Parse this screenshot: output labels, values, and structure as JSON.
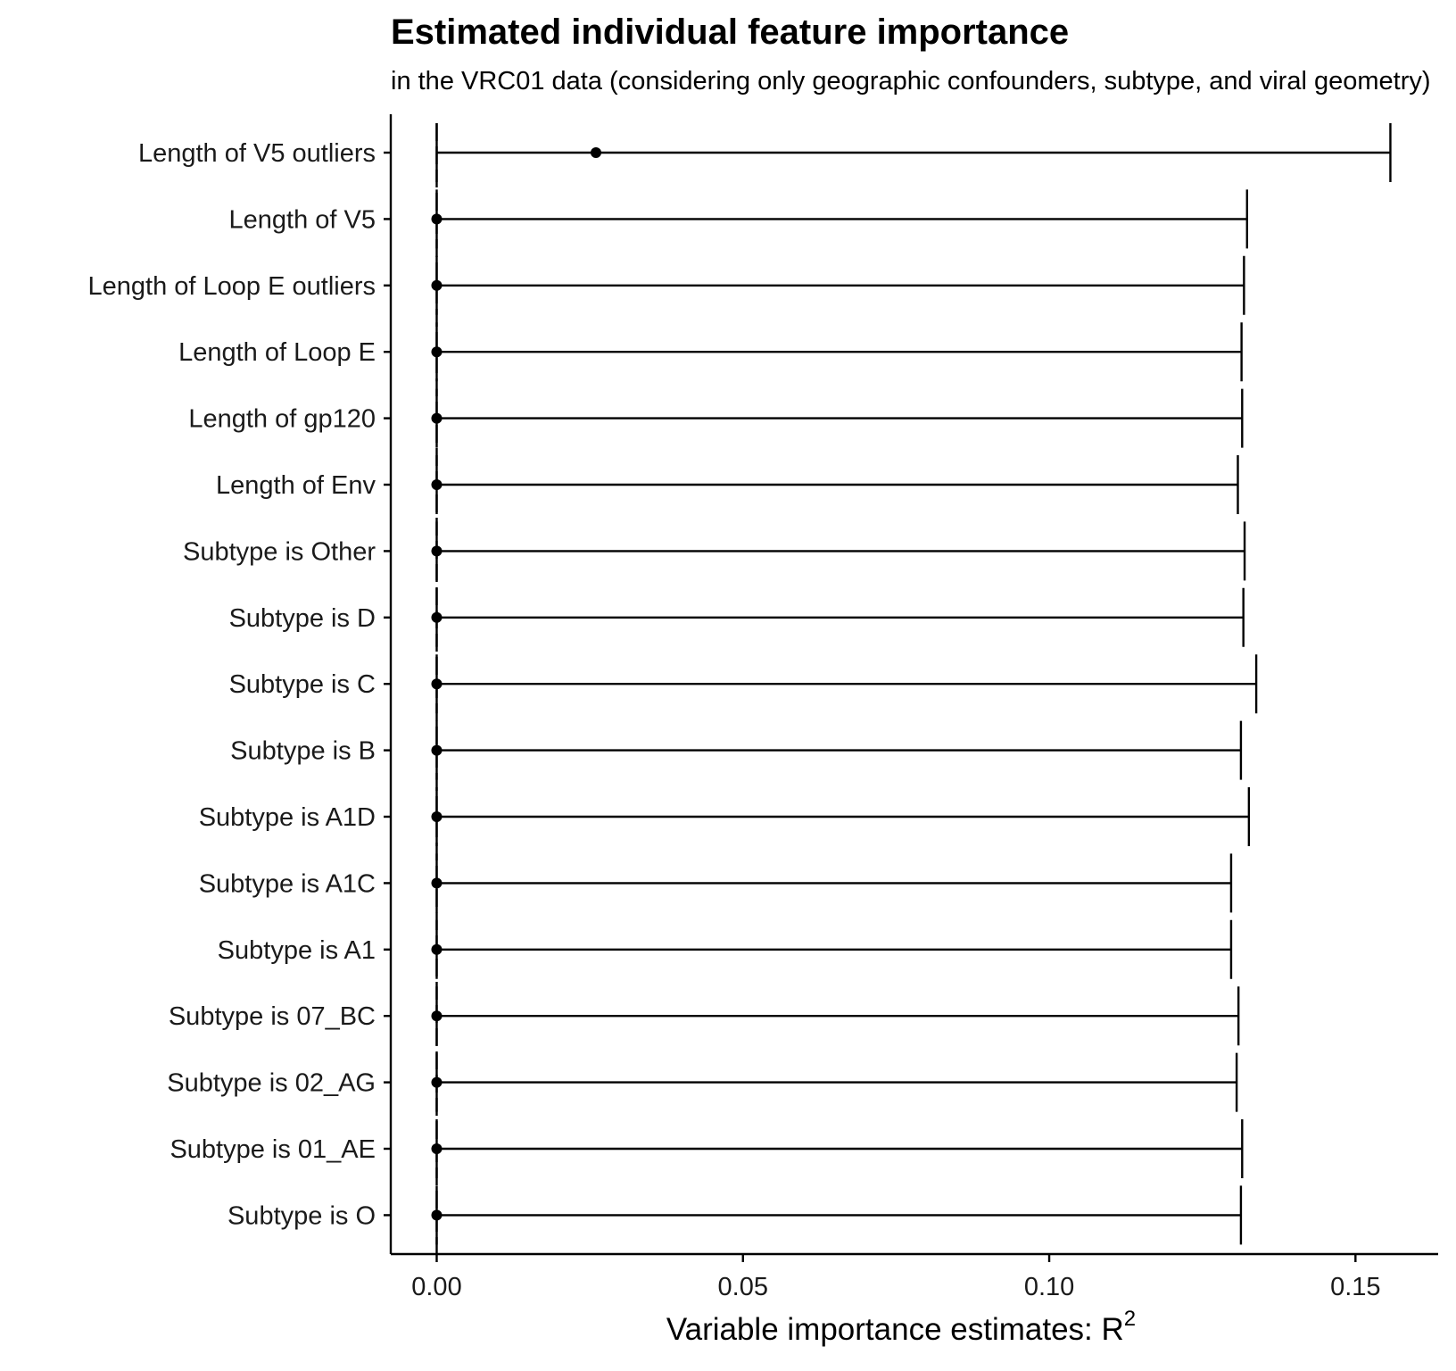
{
  "chart_data": {
    "type": "scatter",
    "title": "Estimated individual feature importance",
    "subtitle": "in the VRC01 data (considering only geographic confounders, subtype, and viral geometry)",
    "xlabel": "Variable importance estimates: R",
    "xlabel_superscript": "2",
    "ylabel": "",
    "xlim": [
      -0.0075,
      0.1635
    ],
    "x_ticks": [
      0.0,
      0.05,
      0.1,
      0.15
    ],
    "x_tick_labels": [
      "0.00",
      "0.05",
      "0.10",
      "0.15"
    ],
    "reference_line_x": 0.0,
    "grid": false,
    "legend": "none",
    "categories": [
      "Length of V5 outliers",
      "Length of V5",
      "Length of Loop E outliers",
      "Length of Loop E",
      "Length of gp120",
      "Length of Env",
      "Subtype is Other",
      "Subtype is D",
      "Subtype is C",
      "Subtype is B",
      "Subtype is A1D",
      "Subtype is A1C",
      "Subtype is A1",
      "Subtype is 07_BC",
      "Subtype is 02_AG",
      "Subtype is 01_AE",
      "Subtype is O"
    ],
    "series": [
      {
        "estimate": [
          0.026,
          0.0,
          0.0,
          0.0,
          0.0,
          0.0,
          0.0,
          0.0,
          0.0,
          0.0,
          0.0,
          0.0,
          0.0,
          0.0,
          0.0,
          0.0,
          0.0
        ],
        "ci_lower": [
          0.0,
          0.0,
          0.0,
          0.0,
          0.0,
          0.0,
          0.0,
          0.0,
          0.0,
          0.0,
          0.0,
          0.0,
          0.0,
          0.0,
          0.0,
          0.0,
          0.0
        ],
        "ci_upper": [
          0.1557,
          0.1323,
          0.1318,
          0.1314,
          0.1315,
          0.1308,
          0.1319,
          0.1317,
          0.1338,
          0.1313,
          0.1326,
          0.1297,
          0.1297,
          0.1309,
          0.1306,
          0.1315,
          0.1313
        ]
      }
    ]
  }
}
